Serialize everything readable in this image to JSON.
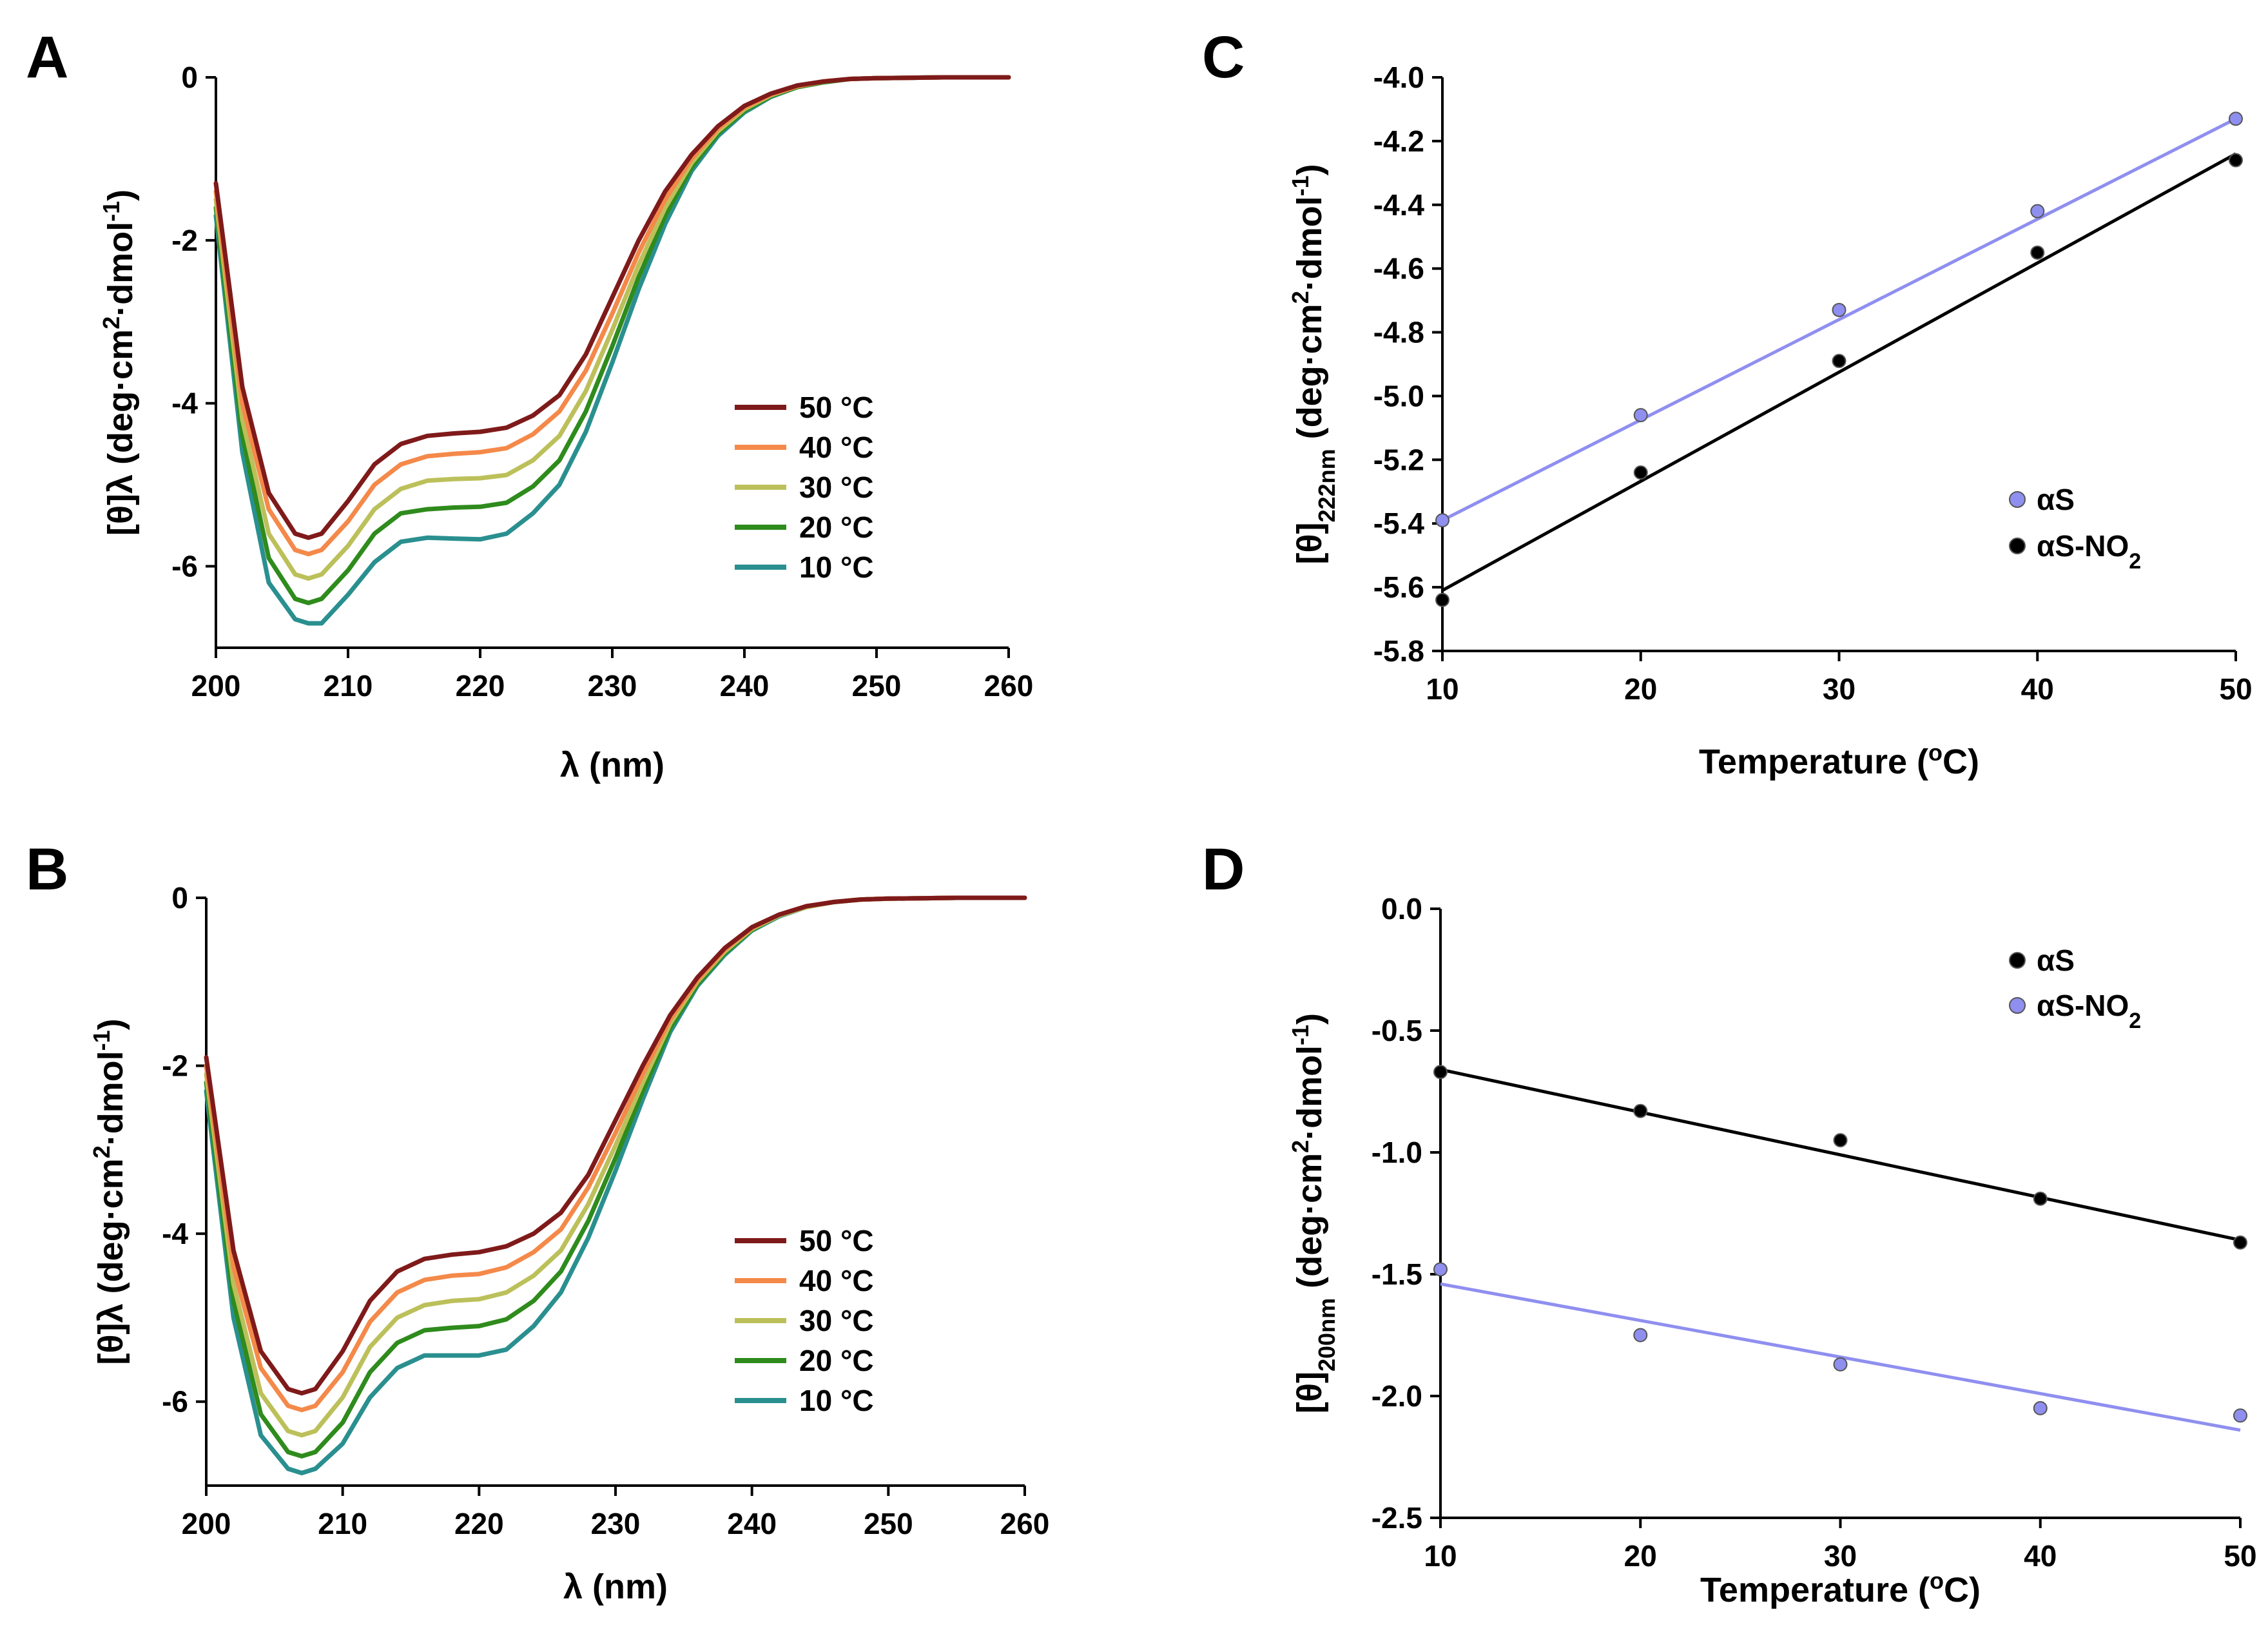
{
  "chart_data": [
    {
      "panel": "A",
      "type": "line",
      "xlabel": "λ (nm)",
      "ylabel": "[θ]λ (deg·cm2·dmol-1)",
      "ylabel_parts": {
        "main": "[θ]λ (deg·cm",
        "sup1": "2",
        "mid": "·dmol",
        "sup2": "-1",
        "end": ")"
      },
      "xlim": [
        200,
        260
      ],
      "ylim": [
        -7,
        0
      ],
      "xticks": [
        "200",
        "210",
        "220",
        "230",
        "240",
        "250",
        "260"
      ],
      "yticks": [
        "0",
        "-2",
        "-4",
        "-6"
      ],
      "x": [
        200,
        202,
        204,
        206,
        207,
        208,
        210,
        212,
        214,
        216,
        218,
        220,
        222,
        224,
        226,
        228,
        230,
        232,
        234,
        236,
        238,
        240,
        242,
        244,
        246,
        248,
        250,
        255,
        260
      ],
      "series": [
        {
          "name": "50 °C",
          "color": "#7f1a1a",
          "values": [
            -1.3,
            -3.8,
            -5.1,
            -5.6,
            -5.65,
            -5.6,
            -5.2,
            -4.75,
            -4.5,
            -4.4,
            -4.37,
            -4.35,
            -4.3,
            -4.15,
            -3.9,
            -3.4,
            -2.7,
            -2.0,
            -1.4,
            -0.95,
            -0.6,
            -0.35,
            -0.2,
            -0.1,
            -0.05,
            -0.02,
            -0.01,
            0,
            0
          ]
        },
        {
          "name": "40 °C",
          "color": "#f4894a",
          "values": [
            -1.4,
            -4.0,
            -5.3,
            -5.8,
            -5.85,
            -5.8,
            -5.45,
            -5.0,
            -4.75,
            -4.65,
            -4.62,
            -4.6,
            -4.55,
            -4.38,
            -4.1,
            -3.6,
            -2.9,
            -2.15,
            -1.5,
            -1.0,
            -0.63,
            -0.37,
            -0.21,
            -0.11,
            -0.05,
            -0.02,
            -0.01,
            0,
            0
          ]
        },
        {
          "name": "30 °C",
          "color": "#bcc05a",
          "values": [
            -1.5,
            -4.2,
            -5.6,
            -6.1,
            -6.15,
            -6.1,
            -5.75,
            -5.3,
            -5.05,
            -4.95,
            -4.93,
            -4.92,
            -4.88,
            -4.7,
            -4.4,
            -3.85,
            -3.1,
            -2.3,
            -1.6,
            -1.05,
            -0.66,
            -0.39,
            -0.22,
            -0.11,
            -0.05,
            -0.02,
            -0.01,
            0,
            0
          ]
        },
        {
          "name": "20 °C",
          "color": "#2e8b1c",
          "values": [
            -1.6,
            -4.4,
            -5.9,
            -6.4,
            -6.45,
            -6.4,
            -6.05,
            -5.6,
            -5.35,
            -5.3,
            -5.28,
            -5.27,
            -5.22,
            -5.02,
            -4.7,
            -4.1,
            -3.3,
            -2.45,
            -1.7,
            -1.1,
            -0.69,
            -0.41,
            -0.23,
            -0.12,
            -0.06,
            -0.02,
            -0.01,
            0,
            0
          ]
        },
        {
          "name": "10 °C",
          "color": "#2a8f8f",
          "values": [
            -1.7,
            -4.6,
            -6.2,
            -6.65,
            -6.7,
            -6.7,
            -6.35,
            -5.95,
            -5.7,
            -5.65,
            -5.66,
            -5.67,
            -5.6,
            -5.35,
            -5.0,
            -4.35,
            -3.5,
            -2.6,
            -1.8,
            -1.15,
            -0.72,
            -0.43,
            -0.24,
            -0.12,
            -0.06,
            -0.02,
            -0.01,
            0,
            0
          ]
        }
      ],
      "legend_position": "right-middle"
    },
    {
      "panel": "B",
      "type": "line",
      "xlabel": "λ (nm)",
      "ylabel": "[θ]λ (deg·cm2·dmol-1)",
      "ylabel_parts": {
        "main": "[θ]λ (deg·cm",
        "sup1": "2",
        "mid": "·dmol",
        "sup2": "-1",
        "end": ")"
      },
      "xlim": [
        200,
        260
      ],
      "ylim": [
        -7,
        0
      ],
      "xticks": [
        "200",
        "210",
        "220",
        "230",
        "240",
        "250",
        "260"
      ],
      "yticks": [
        "0",
        "-2",
        "-4",
        "-6"
      ],
      "x": [
        200,
        202,
        204,
        206,
        207,
        208,
        210,
        212,
        214,
        216,
        218,
        220,
        222,
        224,
        226,
        228,
        230,
        232,
        234,
        236,
        238,
        240,
        242,
        244,
        246,
        248,
        250,
        255,
        260
      ],
      "series": [
        {
          "name": "50 °C",
          "color": "#7f1a1a",
          "values": [
            -1.9,
            -4.2,
            -5.4,
            -5.85,
            -5.9,
            -5.85,
            -5.4,
            -4.8,
            -4.45,
            -4.3,
            -4.25,
            -4.22,
            -4.15,
            -4.0,
            -3.75,
            -3.3,
            -2.65,
            -2.0,
            -1.4,
            -0.95,
            -0.6,
            -0.35,
            -0.2,
            -0.1,
            -0.05,
            -0.02,
            -0.01,
            0,
            0
          ]
        },
        {
          "name": "40 °C",
          "color": "#f4894a",
          "values": [
            -2.0,
            -4.4,
            -5.6,
            -6.05,
            -6.1,
            -6.05,
            -5.65,
            -5.05,
            -4.7,
            -4.55,
            -4.5,
            -4.48,
            -4.4,
            -4.22,
            -3.95,
            -3.45,
            -2.8,
            -2.1,
            -1.45,
            -0.98,
            -0.62,
            -0.36,
            -0.2,
            -0.1,
            -0.05,
            -0.02,
            -0.01,
            0,
            0
          ]
        },
        {
          "name": "30 °C",
          "color": "#bcc05a",
          "values": [
            -2.1,
            -4.6,
            -5.9,
            -6.35,
            -6.4,
            -6.35,
            -5.95,
            -5.35,
            -5.0,
            -4.85,
            -4.8,
            -4.78,
            -4.7,
            -4.5,
            -4.2,
            -3.65,
            -2.95,
            -2.2,
            -1.5,
            -1.0,
            -0.64,
            -0.37,
            -0.21,
            -0.11,
            -0.05,
            -0.02,
            -0.01,
            0,
            0
          ]
        },
        {
          "name": "20 °C",
          "color": "#2e8b1c",
          "values": [
            -2.2,
            -4.8,
            -6.15,
            -6.6,
            -6.65,
            -6.6,
            -6.25,
            -5.65,
            -5.3,
            -5.15,
            -5.12,
            -5.1,
            -5.02,
            -4.8,
            -4.45,
            -3.85,
            -3.1,
            -2.3,
            -1.55,
            -1.03,
            -0.66,
            -0.38,
            -0.21,
            -0.11,
            -0.05,
            -0.02,
            -0.01,
            0,
            0
          ]
        },
        {
          "name": "10 °C",
          "color": "#2a8f8f",
          "values": [
            -2.3,
            -5.0,
            -6.4,
            -6.8,
            -6.85,
            -6.8,
            -6.5,
            -5.95,
            -5.6,
            -5.45,
            -5.45,
            -5.45,
            -5.38,
            -5.1,
            -4.7,
            -4.05,
            -3.25,
            -2.4,
            -1.6,
            -1.05,
            -0.68,
            -0.39,
            -0.22,
            -0.11,
            -0.05,
            -0.02,
            -0.01,
            0,
            0
          ]
        }
      ],
      "legend_position": "right-middle"
    },
    {
      "panel": "C",
      "type": "scatter",
      "xlabel": "Temperature (oC)",
      "xlabel_parts": {
        "main": "Temperature (",
        "sup": "o",
        "end": "C)"
      },
      "ylabel": "[θ]222nm (deg·cm2·dmol-1)",
      "ylabel_parts": {
        "main": "[θ]",
        "sub": "222nm",
        "rest": " (deg·cm",
        "sup1": "2",
        "mid": "·dmol",
        "sup2": "-1",
        "end": ")"
      },
      "xlim": [
        10,
        50
      ],
      "ylim": [
        -5.8,
        -4.0
      ],
      "xticks": [
        "10",
        "20",
        "30",
        "40",
        "50"
      ],
      "yticks": [
        "-4.0",
        "-4.2",
        "-4.4",
        "-4.6",
        "-4.8",
        "-5.0",
        "-5.2",
        "-5.4",
        "-5.6",
        "-5.8"
      ],
      "series": [
        {
          "name": "αS",
          "color": "#8f8ff0",
          "x": [
            10,
            20,
            30,
            40,
            50
          ],
          "y": [
            -5.39,
            -5.06,
            -4.73,
            -4.42,
            -4.13
          ],
          "fit": [
            [
              10,
              -5.39
            ],
            [
              50,
              -4.13
            ]
          ]
        },
        {
          "name": "αS-NO2",
          "label_main": "αS-NO",
          "label_sub": "2",
          "color": "#000000",
          "x": [
            10,
            20,
            30,
            40,
            50
          ],
          "y": [
            -5.64,
            -5.24,
            -4.89,
            -4.55,
            -4.26
          ],
          "fit": [
            [
              10,
              -5.61
            ],
            [
              50,
              -4.24
            ]
          ]
        }
      ],
      "legend_position": "right-middle"
    },
    {
      "panel": "D",
      "type": "scatter",
      "xlabel": "Temperature (oC)",
      "xlabel_parts": {
        "main": "Temperature (",
        "sup": "o",
        "end": "C)"
      },
      "ylabel": "[θ]200nm (deg·cm2·dmol-1)",
      "ylabel_parts": {
        "main": "[θ]",
        "sub": "200nm",
        "rest": " (deg·cm",
        "sup1": "2",
        "mid": "·dmol",
        "sup2": "-1",
        "end": ")"
      },
      "xlim": [
        10,
        50
      ],
      "ylim": [
        -2.5,
        0.0
      ],
      "xticks": [
        "10",
        "20",
        "30",
        "40",
        "50"
      ],
      "yticks": [
        "0.0",
        "-0.5",
        "-1.0",
        "-1.5",
        "-2.0",
        "-2.5"
      ],
      "series": [
        {
          "name": "αS",
          "color": "#000000",
          "x": [
            10,
            20,
            30,
            40,
            50
          ],
          "y": [
            -0.67,
            -0.83,
            -0.95,
            -1.19,
            -1.37
          ],
          "fit": [
            [
              10,
              -0.66
            ],
            [
              50,
              -1.36
            ]
          ]
        },
        {
          "name": "αS-NO2",
          "label_main": "αS-NO",
          "label_sub": "2",
          "color": "#8f8ff0",
          "x": [
            10,
            20,
            30,
            40,
            50
          ],
          "y": [
            -1.48,
            -1.75,
            -1.87,
            -2.05,
            -2.08
          ],
          "fit": [
            [
              10,
              -1.54
            ],
            [
              50,
              -2.14
            ]
          ]
        }
      ],
      "legend_position": "top-right"
    }
  ]
}
